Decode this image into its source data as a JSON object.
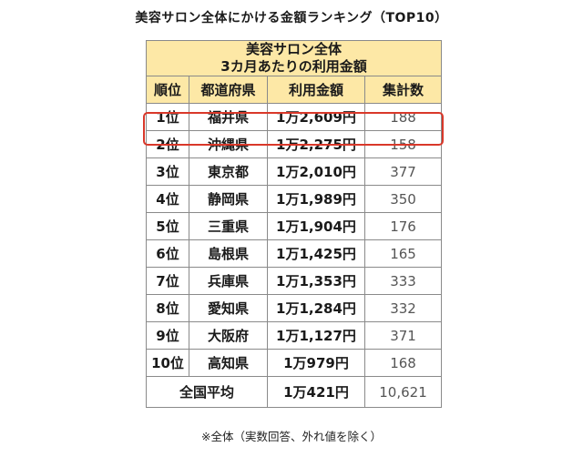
{
  "title": "美容サロン全体にかける金額ランキング（TOP10）",
  "table": {
    "header_line1": "美容サロン全体",
    "header_line2": "3カ月あたりの利用金額",
    "columns": [
      "順位",
      "都道府県",
      "利用金額",
      "集計数"
    ],
    "rows": [
      {
        "rank": "1位",
        "prefecture": "福井県",
        "amount": "1万2,609円",
        "count": "188"
      },
      {
        "rank": "2位",
        "prefecture": "沖縄県",
        "amount": "1万2,275円",
        "count": "158"
      },
      {
        "rank": "3位",
        "prefecture": "東京都",
        "amount": "1万2,010円",
        "count": "377"
      },
      {
        "rank": "4位",
        "prefecture": "静岡県",
        "amount": "1万1,989円",
        "count": "350"
      },
      {
        "rank": "5位",
        "prefecture": "三重県",
        "amount": "1万1,904円",
        "count": "176"
      },
      {
        "rank": "6位",
        "prefecture": "島根県",
        "amount": "1万1,425円",
        "count": "165"
      },
      {
        "rank": "7位",
        "prefecture": "兵庫県",
        "amount": "1万1,353円",
        "count": "333"
      },
      {
        "rank": "8位",
        "prefecture": "愛知県",
        "amount": "1万1,284円",
        "count": "332"
      },
      {
        "rank": "9位",
        "prefecture": "大阪府",
        "amount": "1万1,127円",
        "count": "371"
      },
      {
        "rank": "10位",
        "prefecture": "高知県",
        "amount": "1万979円",
        "count": "168"
      }
    ],
    "average": {
      "label": "全国平均",
      "amount": "1万421円",
      "count": "10,621"
    },
    "highlight_row": 0,
    "colors": {
      "header_bg": "#fde8a6",
      "highlight_border": "#d9382a"
    }
  },
  "footnote": "※全体（実数回答、外れ値を除く）"
}
